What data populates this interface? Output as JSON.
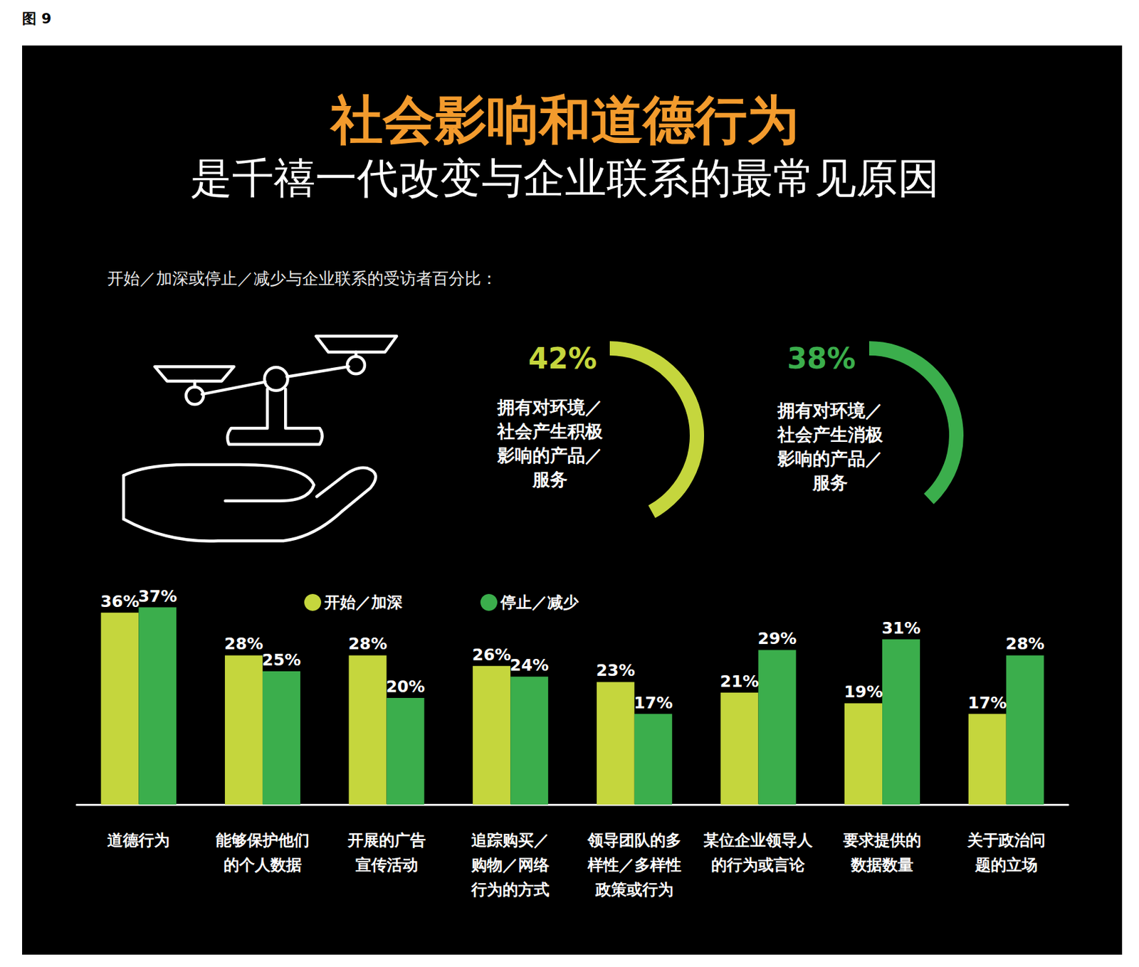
{
  "header": {
    "figure": "图 9",
    "title": "社会影响和道德行为",
    "subtitle": "是千禧一代改变与企业联系的最常见原因",
    "caption": "开始／加深或停止／减少与企业联系的受访者百分比："
  },
  "chart_data": [
    {
      "type": "gauge",
      "value": 42,
      "value_label": "42%",
      "label": "拥有对环境／社会产生积极影响的产品／服务",
      "color": "#c5d63d",
      "ylim": [
        0,
        100
      ],
      "tick_labels": false
    },
    {
      "type": "gauge",
      "value": 38,
      "value_label": "38%",
      "label": "拥有对环境／社会产生消极影响的产品／服务",
      "color": "#3bae4c",
      "ylim": [
        0,
        100
      ],
      "tick_labels": false
    },
    {
      "type": "bar",
      "categories": [
        "道德行为",
        "能够保护他们的个人数据",
        "开展的广告宣传活动",
        "追踪购买／购物／网络行为的方式",
        "领导团队的多样性／多样性政策或行为",
        "某位企业领导人的行为或言论",
        "要求提供的数据数量",
        "关于政治问题的立场"
      ],
      "series": [
        {
          "name": "开始／加深",
          "color": "#c5d63d",
          "values": [
            36,
            28,
            28,
            26,
            23,
            21,
            19,
            17
          ],
          "value_labels": [
            "36%",
            "28%",
            "28%",
            "26%",
            "23%",
            "21%",
            "19%",
            "17%"
          ]
        },
        {
          "name": "停止／减少",
          "color": "#3bae4c",
          "values": [
            37,
            25,
            20,
            24,
            17,
            29,
            31,
            28
          ],
          "value_labels": [
            "37%",
            "25%",
            "20%",
            "24%",
            "17%",
            "29%",
            "31%",
            "28%"
          ]
        }
      ],
      "ylim": [
        0,
        40
      ],
      "data_labels": true,
      "tick_labels": "x",
      "grid": false,
      "legend": "top"
    }
  ]
}
